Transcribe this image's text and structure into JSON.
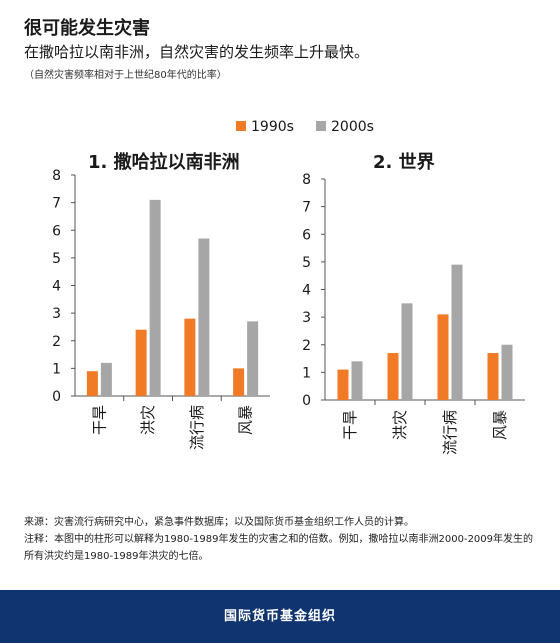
{
  "header": {
    "title": "很可能发生灾害",
    "subtitle": "在撒哈拉以南非洲，自然灾害的发生频率上升最快。",
    "note": "（自然灾害频率相对于上世纪80年代的比率）"
  },
  "colors": {
    "s1990": "#f07a26",
    "s2000": "#a6a6a6",
    "banner": "#0f3470"
  },
  "legend": [
    {
      "label": "1990s",
      "color": "#f07a26"
    },
    {
      "label": "2000s",
      "color": "#a6a6a6"
    }
  ],
  "chart_data": [
    {
      "type": "bar",
      "title": "1. 撒哈拉以南非洲",
      "categories": [
        "干旱",
        "洪灾",
        "流行病",
        "风暴"
      ],
      "series": [
        {
          "name": "1990s",
          "values": [
            0.9,
            2.4,
            2.8,
            1.0
          ]
        },
        {
          "name": "2000s",
          "values": [
            1.2,
            7.1,
            5.7,
            2.7
          ]
        }
      ],
      "ylim": [
        0,
        8
      ],
      "yticks": [
        "0",
        "1",
        "2",
        "3",
        "4",
        "5",
        "6",
        "7",
        "8"
      ],
      "grid": false,
      "legend_position": "top"
    },
    {
      "type": "bar",
      "title": "2. 世界",
      "categories": [
        "干旱",
        "洪灾",
        "流行病",
        "风暴"
      ],
      "series": [
        {
          "name": "1990s",
          "values": [
            1.1,
            1.7,
            3.1,
            1.7
          ]
        },
        {
          "name": "2000s",
          "values": [
            1.4,
            3.5,
            4.9,
            2.0
          ]
        }
      ],
      "ylim": [
        0,
        8
      ],
      "yticks": [
        "0",
        "1",
        "2",
        "3",
        "4",
        "5",
        "6",
        "7",
        "8"
      ],
      "grid": false,
      "legend_position": "top"
    }
  ],
  "footer": {
    "source": "来源：灾害流行病研究中心，紧急事件数据库；以及国际货币基金组织工作人员的计算。",
    "note": "注释：本图中的柱形可以解释为1980-1989年发生的灾害之和的倍数。例如，撒哈拉以南非洲2000-2009年发生的所有洪灾约是1980-1989年洪灾的七倍。"
  },
  "banner": {
    "org": "国际货币基金组织"
  }
}
